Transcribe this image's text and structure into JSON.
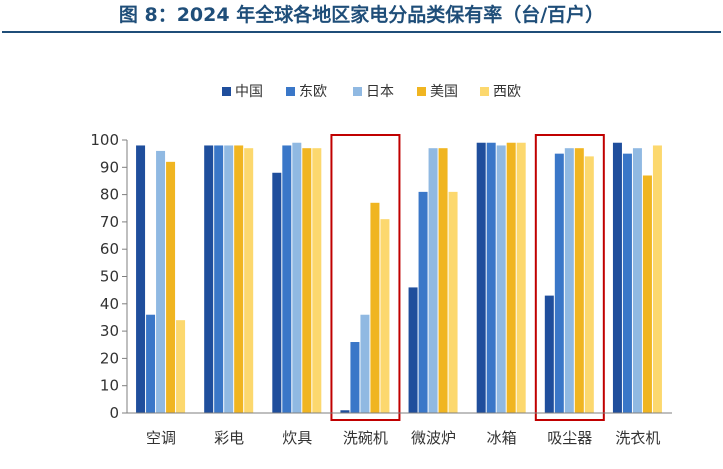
{
  "figure_title": "图 8：2024 年全球各地区家电分品类保有率（台/百户）",
  "chart_data": {
    "type": "bar",
    "title": "",
    "xlabel": "",
    "ylabel": "",
    "ylim": [
      0,
      100
    ],
    "yticks": [
      0,
      10,
      20,
      30,
      40,
      50,
      60,
      70,
      80,
      90,
      100
    ],
    "grid": false,
    "legend_position": "top",
    "categories": [
      "空调",
      "彩电",
      "炊具",
      "洗碗机",
      "微波炉",
      "冰箱",
      "吸尘器",
      "洗衣机"
    ],
    "series": [
      {
        "name": "中国",
        "color": "#1f4e9c",
        "values": [
          98,
          98,
          88,
          1,
          46,
          99,
          43,
          99
        ]
      },
      {
        "name": "东欧",
        "color": "#3a77c8",
        "values": [
          36,
          98,
          98,
          26,
          81,
          99,
          95,
          95
        ]
      },
      {
        "name": "日本",
        "color": "#90b9e2",
        "values": [
          96,
          98,
          99,
          36,
          97,
          98,
          97,
          97
        ]
      },
      {
        "name": "美国",
        "color": "#f0b521",
        "values": [
          92,
          98,
          97,
          77,
          97,
          99,
          97,
          87
        ]
      },
      {
        "name": "西欧",
        "color": "#fcd86e",
        "values": [
          34,
          97,
          97,
          71,
          81,
          99,
          94,
          98
        ]
      }
    ],
    "highlighted_categories": [
      "洗碗机",
      "吸尘器"
    ],
    "highlight_color": "#c00000"
  }
}
